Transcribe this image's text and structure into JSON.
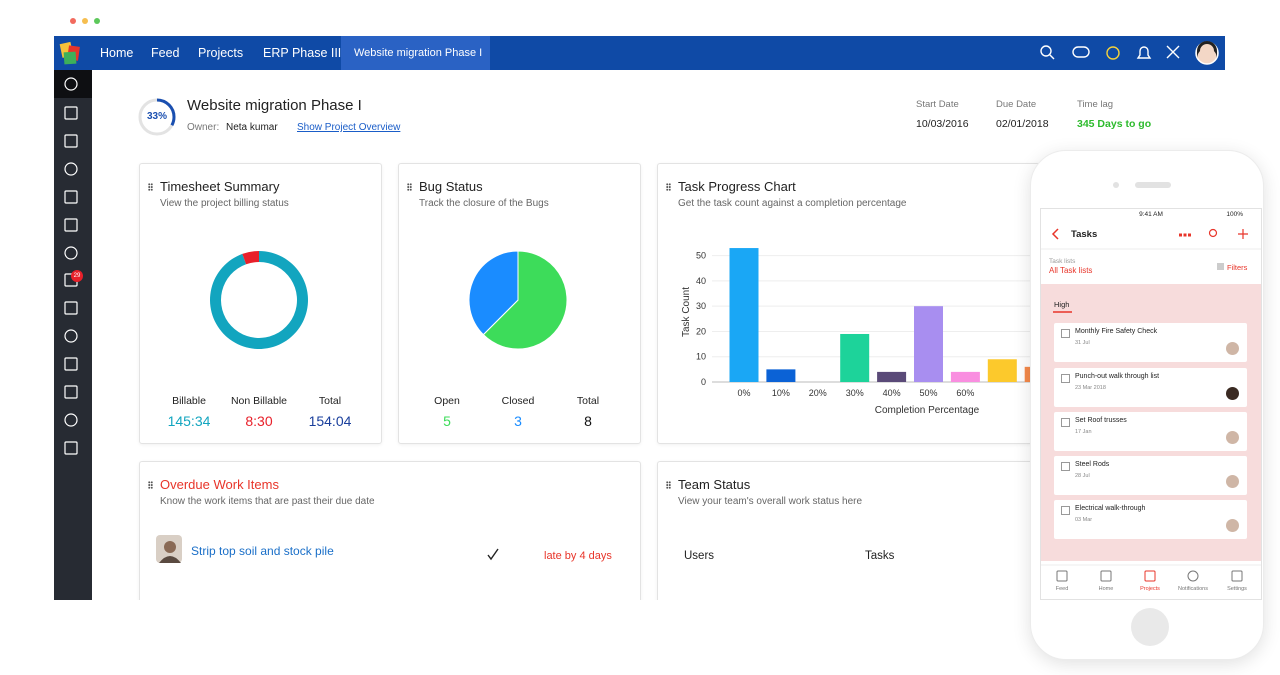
{
  "nav": {
    "items": [
      "Home",
      "Feed",
      "Projects",
      "ERP Phase III",
      "Website migration Phase I"
    ]
  },
  "sidebar": {
    "badge": "29"
  },
  "project": {
    "progress": "33%",
    "title": "Website migration Phase I",
    "owner_label": "Owner:",
    "owner": "Neta kumar",
    "link": "Show Project Overview",
    "meta": [
      {
        "label": "Start Date",
        "value": "10/03/2016"
      },
      {
        "label": "Due Date",
        "value": "02/01/2018"
      },
      {
        "label": "Time lag",
        "value": "345 Days to go"
      }
    ]
  },
  "timesheet": {
    "title": "Timesheet Summary",
    "subtitle": "View the project billing status",
    "stats": [
      {
        "label": "Billable",
        "value": "145:34",
        "color": "#12a5bf"
      },
      {
        "label": "Non Billable",
        "value": "8:30",
        "color": "#e8202a"
      }
    ],
    "total": {
      "label": "Total",
      "value": "154:04",
      "color": "#1a3f9c"
    }
  },
  "bugs": {
    "title": "Bug Status",
    "subtitle": "Track the closure of the Bugs",
    "stats": [
      {
        "label": "Open",
        "value": 5,
        "color": "#3ddc5a"
      },
      {
        "label": "Closed",
        "value": 3,
        "color": "#1a8cff"
      }
    ],
    "total": {
      "label": "Total",
      "value": 8,
      "color": "#111111"
    }
  },
  "task_chart": {
    "type": "bar",
    "title": "Task Progress Chart",
    "subtitle": "Get the task count against a completion percentage",
    "categories": [
      "0%",
      "10%",
      "20%",
      "30%",
      "40%",
      "50%",
      "60%",
      null,
      null
    ],
    "values": [
      53,
      5,
      0,
      19,
      4,
      30,
      4,
      9,
      6
    ],
    "colors": [
      "#1aa7f5",
      "#0b62d6",
      "#1aa7f5",
      "#1dd39a",
      "#5a4a78",
      "#a88ef0",
      "#f98ee0",
      "#fcc92c",
      "#f5894a"
    ],
    "ylim": [
      0,
      55
    ],
    "yticks": [
      0,
      10,
      20,
      30,
      40,
      50
    ],
    "ylabel": "Task Count",
    "xlabel": "Completion Percentage",
    "grid": true
  },
  "overdue": {
    "title": "Overdue Work Items",
    "subtitle": "Know the work items that are past their due date",
    "item": "Strip top soil and stock pile",
    "status": "late by 4 days"
  },
  "team": {
    "title": "Team Status",
    "subtitle": "View your team's overall work status here",
    "columns": [
      "Users",
      "Tasks"
    ]
  },
  "phone": {
    "time": "9:41 AM",
    "battery": "100%",
    "title": "Tasks",
    "lists_label": "Task lists",
    "lists_value": "All Task lists",
    "filter": "Filters",
    "tab": "High",
    "tasks": [
      {
        "name": "Monthly Fire Safety Check",
        "date": "31 Jul"
      },
      {
        "name": "Punch-out walk through list",
        "date": "23 Mar 2018"
      },
      {
        "name": "Set Roof trusses",
        "date": "17 Jan"
      },
      {
        "name": "Steel Rods",
        "date": "28 Jul"
      },
      {
        "name": "Electrical walk-through",
        "date": "03 Mar"
      }
    ],
    "tabs": [
      "Feed",
      "Home",
      "Projects",
      "Notifications",
      "Settings"
    ]
  }
}
